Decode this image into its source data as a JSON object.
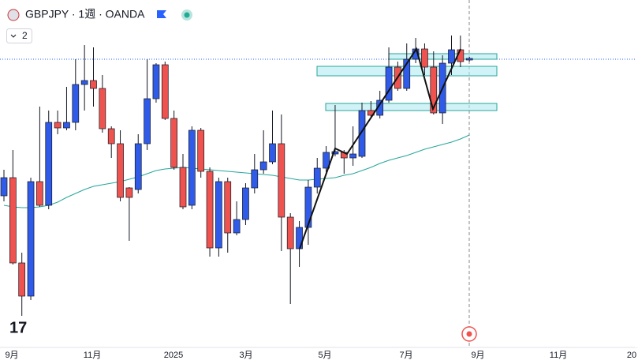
{
  "header": {
    "symbol": "GBPJPY · 1週 · OANDA",
    "button": "2"
  },
  "chart_data": {
    "type": "candlestick",
    "categories": [
      null,
      null,
      null,
      null,
      null,
      null,
      null,
      null,
      null,
      null,
      null,
      null,
      null,
      null,
      null,
      null,
      null,
      null,
      null,
      null,
      null,
      null,
      null,
      null,
      null,
      null,
      null,
      null,
      null,
      null,
      null,
      null,
      null,
      null,
      null,
      null,
      null,
      null,
      null,
      null,
      null,
      null,
      null,
      null,
      null,
      null,
      null,
      null,
      null,
      null,
      null,
      null,
      null
    ],
    "open": [
      188.12,
      189.5,
      183.02,
      180.5,
      189.2,
      187.4,
      193.7,
      193.28,
      193.7,
      196.58,
      196.88,
      196.28,
      193.22,
      192.08,
      188.72,
      188.6,
      192.08,
      195.5,
      198.08,
      194,
      190.28,
      187.4,
      193.1,
      189.98,
      184.16,
      189.2,
      185.3,
      186.32,
      188.72,
      190.1,
      190.7,
      192.08,
      186.5,
      184.1,
      185.72,
      188.78,
      190.22,
      191.3,
      191.42,
      191,
      191.12,
      194.6,
      194.24,
      195.38,
      197.9,
      196.28,
      198.5,
      199.28,
      197.9,
      194.42,
      198.2,
      199.22,
      198.44
    ],
    "high": [
      190.1,
      191.6,
      183.8,
      189.5,
      194.9,
      194.6,
      194.6,
      196.4,
      198.5,
      199.58,
      199.4,
      197.3,
      193.4,
      193.1,
      188.78,
      192.8,
      198.5,
      198.2,
      198.32,
      194.6,
      191.3,
      193.4,
      193.28,
      190.28,
      189.5,
      189.5,
      187.7,
      189.08,
      191.3,
      193.1,
      194.6,
      194.3,
      186.8,
      186.2,
      189.32,
      191,
      191.9,
      195.02,
      191.6,
      193.4,
      195.2,
      195.32,
      196.1,
      199.4,
      198.32,
      199.7,
      200.12,
      199.7,
      199.1,
      198.8,
      200.3,
      200.3,
      198.68
    ],
    "low": [
      187.7,
      182.9,
      179,
      180.2,
      187.28,
      187.1,
      192.8,
      193.1,
      193.1,
      194.6,
      194.9,
      192.92,
      191,
      187.7,
      184.7,
      188.3,
      191.6,
      195.2,
      193.88,
      190.1,
      187.1,
      187.1,
      189.5,
      183.5,
      183.5,
      183.8,
      185.12,
      185.9,
      188.3,
      189.8,
      190.52,
      183.92,
      179.9,
      182.72,
      184.4,
      188.3,
      189.92,
      191.12,
      189.8,
      190.4,
      191,
      194.12,
      194,
      195.2,
      196.1,
      196.1,
      198.2,
      197.3,
      194.3,
      193.58,
      197.3,
      197.9,
      198.32
    ],
    "close": [
      189.5,
      183.02,
      180.5,
      189.2,
      187.4,
      193.7,
      193.28,
      193.7,
      196.58,
      196.88,
      196.28,
      193.22,
      192.08,
      188,
      188,
      192.08,
      195.5,
      198.08,
      194,
      190.28,
      187.28,
      193.1,
      189.98,
      184.16,
      189.2,
      185.3,
      186.32,
      188.72,
      190.1,
      190.7,
      192.08,
      186.5,
      184.1,
      185.72,
      188.78,
      190.22,
      191.42,
      191.48,
      191,
      191.3,
      194.6,
      194.24,
      195.38,
      197.9,
      196.28,
      198.5,
      199.28,
      197.9,
      194.42,
      198.2,
      199.22,
      198.32,
      198.56
    ],
    "ma": [
      187.4,
      187.28,
      187.22,
      187.22,
      187.28,
      187.4,
      187.64,
      188,
      188.3,
      188.6,
      188.84,
      188.96,
      189.08,
      189.2,
      189.38,
      189.56,
      189.8,
      190.04,
      190.16,
      190.22,
      190.28,
      190.22,
      190.16,
      190.1,
      190.04,
      189.98,
      189.92,
      189.86,
      189.8,
      189.74,
      189.68,
      189.56,
      189.44,
      189.32,
      189.32,
      189.38,
      189.44,
      189.5,
      189.68,
      189.8,
      190.04,
      190.28,
      190.58,
      190.82,
      191,
      191.18,
      191.42,
      191.66,
      191.84,
      192.02,
      192.2,
      192.44,
      192.74
    ],
    "up_color": "#2f5be8",
    "down_color": "#ef5350",
    "ma_color": "#26a69a",
    "ylim": [
      176.6,
      203
    ],
    "x_axis_labels": [
      "9月",
      "11月",
      "2025",
      "3月",
      "5月",
      "7月",
      "9月",
      "11月",
      "20"
    ]
  }
}
